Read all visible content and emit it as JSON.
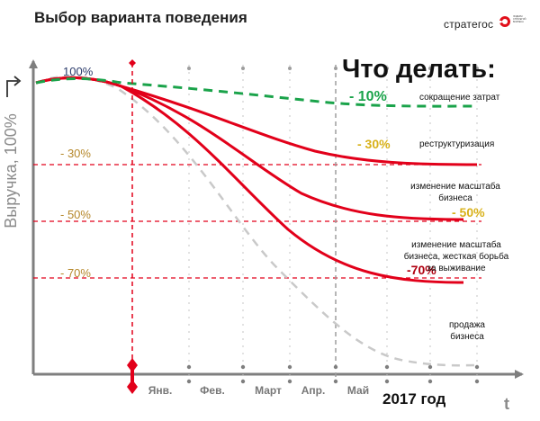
{
  "header": {
    "title": "Выбор варианта поведения",
    "logo_text": "стратегос",
    "logo_tagline": "ЛИДЕРЫ СТРАТЕГИЙ БИЗНЕСА"
  },
  "chart_data": {
    "type": "line",
    "title": "Что делать:",
    "ylabel": "Выручка, 100%",
    "xlabel": "t",
    "year_label": "2017 год",
    "x": [
      "Янв.",
      "Фев.",
      "Март",
      "Апр.",
      "Май"
    ],
    "y_tick_labels": [
      "100%",
      "- 30%",
      "- 50%",
      "- 70%"
    ],
    "y_ref_levels": [
      -30,
      -50,
      -70
    ],
    "colors": {
      "cut": "#1aa34a",
      "red": "#e2001a",
      "sale": "#c9c9c9",
      "axis": "#7f7f7f",
      "ref": "#e2001a",
      "tick_text": "#b5872a",
      "pct_yellow": "#d8b11a",
      "pct_dark_red": "#b00010"
    },
    "series": [
      {
        "name": "сокращение затрат",
        "pct_label": "- 10%",
        "change_percent": -10,
        "style": "green-dashed"
      },
      {
        "name": "реструктуризация",
        "pct_label": "- 30%",
        "change_percent": -30,
        "style": "red-solid"
      },
      {
        "name": "изменение масштаба бизнеса",
        "pct_label": "- 50%",
        "change_percent": -50,
        "style": "red-solid"
      },
      {
        "name": "изменение масштаба бизнеса, жесткая борьба за выживание",
        "pct_label": "-70%",
        "change_percent": -70,
        "style": "red-solid"
      },
      {
        "name": "продажа бизнеса",
        "change_percent": -100,
        "style": "grey-dashed"
      }
    ]
  }
}
